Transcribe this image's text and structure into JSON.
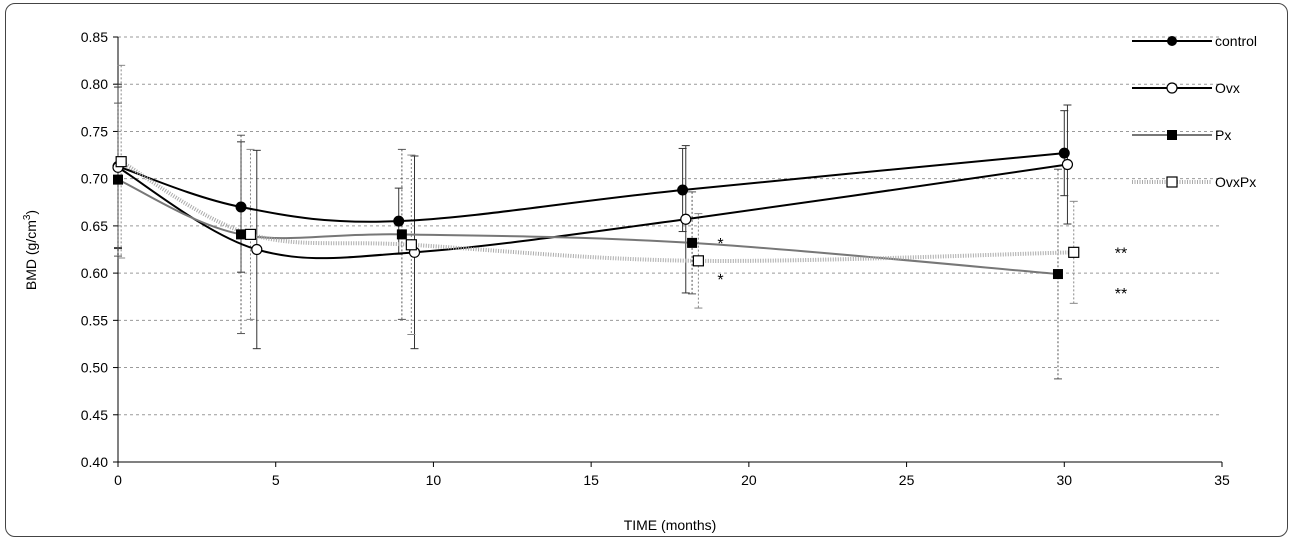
{
  "chart_data": {
    "type": "line",
    "title": "",
    "xlabel": "TIME (months)",
    "ylabel_main": "BMD (g/cm",
    "ylabel_sup": "3",
    "ylabel_close": ")",
    "xlim": [
      0,
      35
    ],
    "ylim": [
      0.4,
      0.85
    ],
    "x_ticks": [
      0,
      5,
      10,
      15,
      20,
      25,
      30,
      35
    ],
    "x_tick_labels": [
      "0",
      "5",
      "10",
      "15",
      "20",
      "25",
      "30",
      "35"
    ],
    "y_ticks": [
      0.4,
      0.45,
      0.5,
      0.55,
      0.6,
      0.65,
      0.7,
      0.75,
      0.8,
      0.85
    ],
    "y_tick_labels": [
      "0.40",
      "0.45",
      "0.50",
      "0.55",
      "0.60",
      "0.65",
      "0.70",
      "0.75",
      "0.80",
      "0.85"
    ],
    "grid": true,
    "legend_position": "right",
    "series": [
      {
        "name": "control",
        "color": "#000000",
        "stroke_style": "solid",
        "marker": "circle-filled",
        "points": [
          {
            "x": 0.0,
            "y": 0.713,
            "err": 0.087,
            "err_lo": true
          },
          {
            "x": 3.9,
            "y": 0.67,
            "err": 0.069
          },
          {
            "x": 8.9,
            "y": 0.655,
            "err": 0.035
          },
          {
            "x": 17.9,
            "y": 0.688,
            "err": 0.044
          },
          {
            "x": 30.0,
            "y": 0.727,
            "err": 0.045
          }
        ]
      },
      {
        "name": "Ovx",
        "color": "#000000",
        "stroke_style": "solid",
        "marker": "circle-open",
        "points": [
          {
            "x": 0.0,
            "y": 0.712,
            "err": 0.085,
            "err_lo": true
          },
          {
            "x": 4.4,
            "y": 0.625,
            "err": 0.105
          },
          {
            "x": 9.4,
            "y": 0.622,
            "err": 0.102
          },
          {
            "x": 18.0,
            "y": 0.657,
            "err": 0.078
          },
          {
            "x": 30.1,
            "y": 0.715,
            "err": 0.063
          }
        ]
      },
      {
        "name": "Px",
        "color": "#777777",
        "stroke_style": "solid",
        "marker": "square-filled",
        "points": [
          {
            "x": 0.0,
            "y": 0.699,
            "err": 0.081,
            "err_lo": true
          },
          {
            "x": 3.9,
            "y": 0.641,
            "err": 0.105
          },
          {
            "x": 9.0,
            "y": 0.641,
            "err": 0.09
          },
          {
            "x": 18.2,
            "y": 0.632,
            "err": 0.054
          },
          {
            "x": 29.8,
            "y": 0.599,
            "err": 0.111
          }
        ]
      },
      {
        "name": "OvxPx",
        "color": "#aaaaaa",
        "stroke_style": "dotted",
        "marker": "square-open",
        "points": [
          {
            "x": 0.1,
            "y": 0.718,
            "err": 0.102,
            "err_lo": true
          },
          {
            "x": 4.2,
            "y": 0.641,
            "err": 0.09
          },
          {
            "x": 9.3,
            "y": 0.63,
            "err": 0.095
          },
          {
            "x": 18.4,
            "y": 0.613,
            "err": 0.05
          },
          {
            "x": 30.3,
            "y": 0.622,
            "err": 0.054
          }
        ]
      }
    ],
    "annotations": [
      {
        "text": "*",
        "x": 19.0,
        "y": 0.634
      },
      {
        "text": "*",
        "x": 19.0,
        "y": 0.596
      },
      {
        "text": "**",
        "x": 31.6,
        "y": 0.624
      },
      {
        "text": "**",
        "x": 31.6,
        "y": 0.581
      }
    ]
  }
}
